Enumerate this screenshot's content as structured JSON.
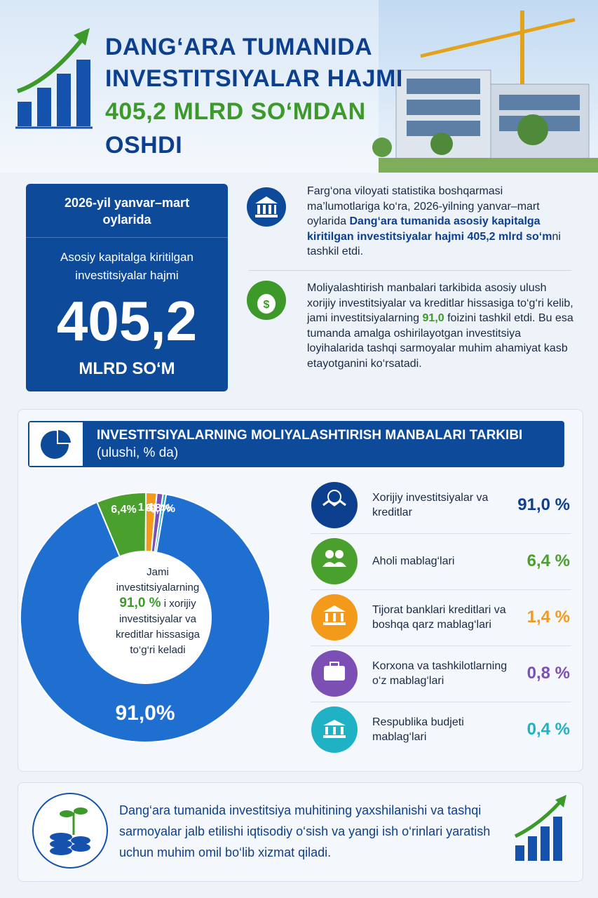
{
  "header": {
    "title_line_1": "DANG‘ARA TUMANIDA",
    "title_line_2": "INVESTITSIYALAR HAJMI",
    "title_line_3": "405,2 MLRD SO‘MDAN",
    "title_line_4": "OSHDI"
  },
  "summary": {
    "period": "2026-yil yanvar–mart oylarida",
    "caption": "Asosiy kapitalga kiritilgan investitsiyalar hajmi",
    "amount": "405,2",
    "unit": "MLRD SO‘M"
  },
  "paragraphs": [
    {
      "segments": [
        {
          "text": "Farg‘ona viloyati statistika boshqarmasi ma’lumotlariga ko‘ra, 2026-yilning yanvar–mart oylarida ",
          "style": "plain"
        },
        {
          "text": "Dang‘ara tumanida asosiy kapitalga kiritilgan investitsiyalar hajmi 405,2 mlrd so‘m",
          "style": "bold"
        },
        {
          "text": "ni tashkil etdi.",
          "style": "plain"
        }
      ]
    },
    {
      "segments": [
        {
          "text": "Moliyalashtirish manbalari tarkibida asosiy ulush xorijiy investitsiyalar va kreditlar hissasiga to‘g‘ri kelib, jami investitsiyalarning ",
          "style": "plain"
        },
        {
          "text": "91,0",
          "style": "green"
        },
        {
          "text": " foizini tashkil etdi. Bu esa tumanda amalga oshirilayotgan investitsiya loyihalarida tashqi sarmoyalar muhim ahamiyat kasb etayotganini ko‘rsatadi.",
          "style": "plain"
        }
      ]
    }
  ],
  "chart_data": {
    "type": "pie",
    "title": "INVESTITSIYALARNING MOLIYALASHTIRISH MANBALARI TARKIBI",
    "subtitle": "(ulushi, % da)",
    "categories": [
      "Xorijiy investitsiyalar va kreditlar",
      "Aholi mablag‘lari",
      "Tijorat banklari kreditlari va boshqa qarz mablag‘lari",
      "Korxona va tashkilotlarning o‘z mablag‘lari",
      "Respublika budjeti mablag‘lari"
    ],
    "values": [
      91.0,
      6.4,
      1.4,
      0.8,
      0.4
    ],
    "value_labels": [
      "91,0%",
      "6,4%",
      "1,4%",
      "0,8%",
      "0,4%"
    ],
    "legend_value_labels": [
      "91,0 %",
      "6,4 %",
      "1,4 %",
      "0,8 %",
      "0,4 %"
    ],
    "colors": [
      "#1f6fd1",
      "#4aa02c",
      "#f49a1a",
      "#7b4fb3",
      "#1fb1c4"
    ],
    "center_text": {
      "line_1": "Jami investitsiyalarning",
      "highlight": "91,0 %",
      "line_2": "i xorijiy investitsiyalar va kreditlar hissasiga to‘g‘ri keladi"
    }
  },
  "footer": {
    "text": "Dang‘ara tumanida investitsiya muhitining yaxshilanishi va tashqi sarmoyalar jalb etilishi iqtisodiy o‘sish va yangi ish o‘rinlari yaratish uchun muhim omil bo‘lib xizmat qiladi."
  }
}
